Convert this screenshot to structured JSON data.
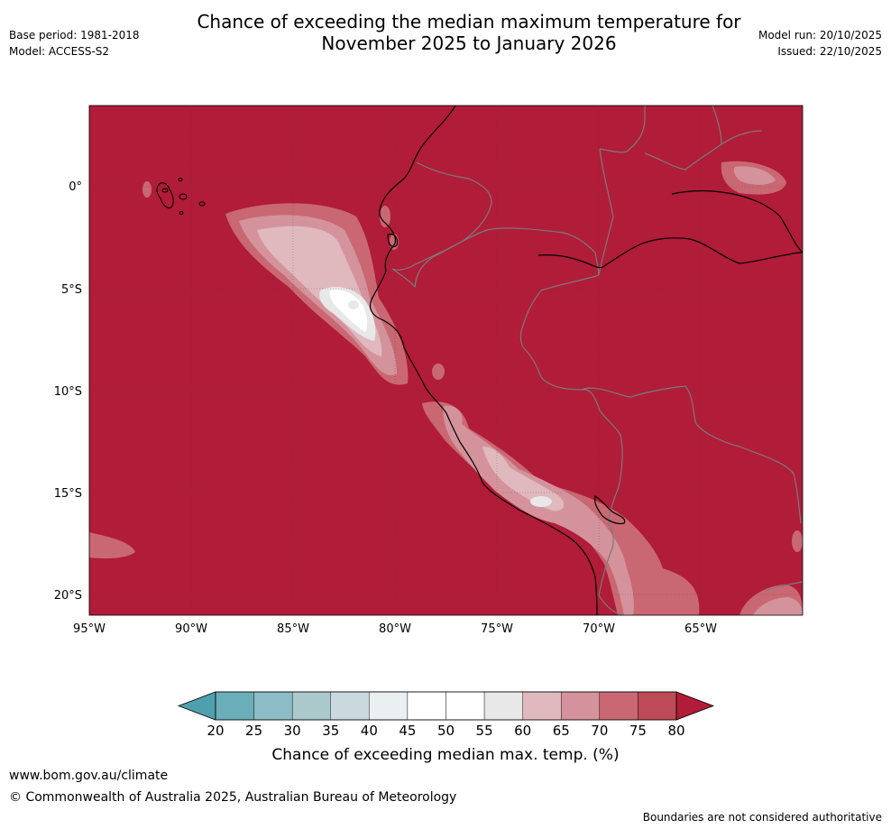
{
  "header": {
    "title_line1": "Chance of exceeding the median maximum temperature for",
    "title_line2": "November 2025 to January 2026",
    "base_period": "Base period: 1981-2018",
    "model": "Model: ACCESS-S2",
    "model_run": "Model run: 20/10/2025",
    "issued": "Issued: 22/10/2025"
  },
  "map": {
    "lon_ticks": [
      "95°W",
      "90°W",
      "85°W",
      "80°W",
      "75°W",
      "70°W",
      "65°W"
    ],
    "lat_ticks": [
      "0°",
      "5°S",
      "10°S",
      "15°S",
      "20°S"
    ],
    "base_color": "#b11c38"
  },
  "legend": {
    "title": "Chance of exceeding median max. temp. (%)",
    "ticks": [
      "20",
      "25",
      "30",
      "35",
      "40",
      "45",
      "50",
      "55",
      "60",
      "65",
      "70",
      "75",
      "80"
    ],
    "colors": [
      "#4fa0ae",
      "#6aaeba",
      "#8cbcc6",
      "#abc8cd",
      "#c9d9dd",
      "#eaf0f1",
      "#ffffff",
      "#ffffff",
      "#e8e8e8",
      "#e0b9bf",
      "#d4939c",
      "#c96872",
      "#be4a57",
      "#b11c38"
    ]
  },
  "footer": {
    "url": "www.bom.gov.au/climate",
    "copyright": "© Commonwealth of Australia 2025, Australian Bureau of Meteorology",
    "disclaimer": "Boundaries are not considered authoritative"
  }
}
